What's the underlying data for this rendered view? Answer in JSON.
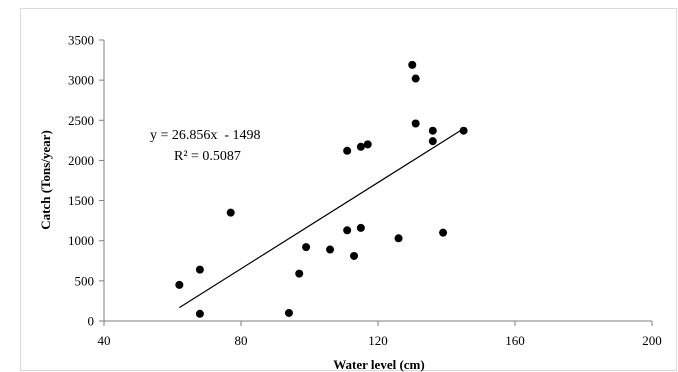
{
  "chart_data": {
    "type": "scatter",
    "title": "",
    "xlabel": "Water level (cm)",
    "ylabel": "Catch (Tons/year)",
    "xlim": [
      40,
      200
    ],
    "ylim": [
      0,
      3500
    ],
    "x_ticks": [
      40,
      80,
      120,
      160,
      200
    ],
    "y_ticks": [
      0,
      500,
      1000,
      1500,
      2000,
      2500,
      3000,
      3500
    ],
    "grid": false,
    "legend": "none",
    "point_color": "#000000",
    "points": [
      {
        "x": 62,
        "y": 450
      },
      {
        "x": 68,
        "y": 640
      },
      {
        "x": 68,
        "y": 90
      },
      {
        "x": 77,
        "y": 1350
      },
      {
        "x": 94,
        "y": 100
      },
      {
        "x": 97,
        "y": 590
      },
      {
        "x": 99,
        "y": 920
      },
      {
        "x": 106,
        "y": 890
      },
      {
        "x": 111,
        "y": 2120
      },
      {
        "x": 111,
        "y": 1130
      },
      {
        "x": 113,
        "y": 810
      },
      {
        "x": 115,
        "y": 2170
      },
      {
        "x": 115,
        "y": 1160
      },
      {
        "x": 117,
        "y": 2200
      },
      {
        "x": 126,
        "y": 1030
      },
      {
        "x": 130,
        "y": 3190
      },
      {
        "x": 131,
        "y": 3020
      },
      {
        "x": 131,
        "y": 2460
      },
      {
        "x": 136,
        "y": 2370
      },
      {
        "x": 136,
        "y": 2240
      },
      {
        "x": 139,
        "y": 1100
      },
      {
        "x": 145,
        "y": 2370
      }
    ],
    "trendline": {
      "slope": 26.856,
      "intercept": -1498,
      "x_range": [
        62,
        145
      ],
      "equation_label": "y = 26.856x  - 1498",
      "r2_label": "R² = 0.5087"
    }
  }
}
